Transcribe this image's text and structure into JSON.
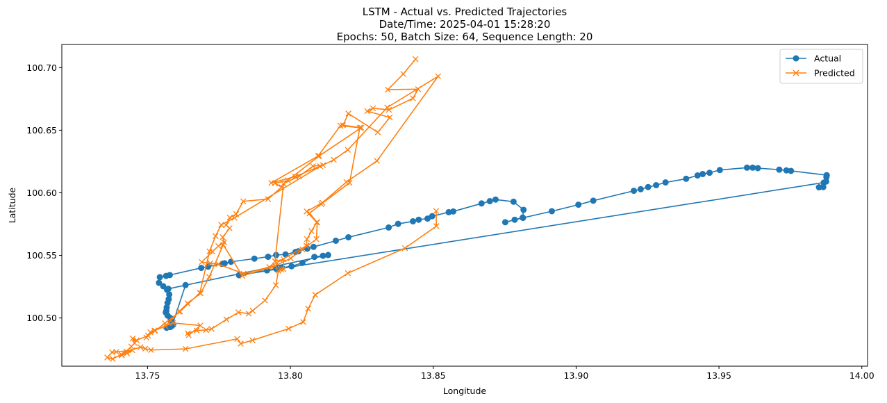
{
  "chart_data": {
    "type": "line",
    "title_lines": [
      "LSTM - Actual vs. Predicted Trajectories",
      "Date/Time: 2025-04-01 15:28:20",
      "Epochs: 50, Batch Size: 64, Sequence Length: 20"
    ],
    "xlabel": "Longitude",
    "ylabel": "Latitude",
    "xlim": [
      13.72,
      14.002
    ],
    "ylim": [
      100.4615,
      100.7185
    ],
    "xticks": [
      "13.75",
      "13.80",
      "13.85",
      "13.90",
      "13.95",
      "14.00"
    ],
    "yticks": [
      "100.50",
      "100.55",
      "100.60",
      "100.65",
      "100.70"
    ],
    "legend_position": "top-right",
    "colors": {
      "actual": "#1f77b4",
      "predicted": "#ff7f0e"
    },
    "series": [
      {
        "name": "Actual",
        "marker": "circle",
        "points": [
          [
            13.7543,
            100.5326
          ],
          [
            13.7565,
            100.5336
          ],
          [
            13.7578,
            100.5343
          ],
          [
            13.7688,
            100.54
          ],
          [
            13.7712,
            100.541
          ],
          [
            13.7762,
            100.5433
          ],
          [
            13.777,
            100.5437
          ],
          [
            13.7792,
            100.5449
          ],
          [
            13.7874,
            100.5474
          ],
          [
            13.7922,
            100.5489
          ],
          [
            13.795,
            100.5503
          ],
          [
            13.7983,
            100.5508
          ],
          [
            13.8018,
            100.5527
          ],
          [
            13.8028,
            100.5533
          ],
          [
            13.8059,
            100.5554
          ],
          [
            13.8081,
            100.5568
          ],
          [
            13.8159,
            100.5617
          ],
          [
            13.8203,
            100.5645
          ],
          [
            13.8344,
            100.5723
          ],
          [
            13.8377,
            100.5752
          ],
          [
            13.8429,
            100.5772
          ],
          [
            13.8449,
            100.5785
          ],
          [
            13.848,
            100.5794
          ],
          [
            13.8496,
            100.5813
          ],
          [
            13.8554,
            100.5845
          ],
          [
            13.857,
            100.5851
          ],
          [
            13.8669,
            100.5915
          ],
          [
            13.8698,
            100.5933
          ],
          [
            13.8718,
            100.5946
          ],
          [
            13.8781,
            100.5929
          ],
          [
            13.8816,
            100.5864
          ],
          [
            13.8813,
            100.5802
          ],
          [
            13.8785,
            100.5785
          ],
          [
            13.8752,
            100.5765
          ],
          [
            13.8814,
            100.58
          ],
          [
            13.8915,
            100.5853
          ],
          [
            13.9008,
            100.5905
          ],
          [
            13.906,
            100.5937
          ],
          [
            13.9202,
            100.6016
          ],
          [
            13.9226,
            100.6029
          ],
          [
            13.9252,
            100.6046
          ],
          [
            13.928,
            100.6061
          ],
          [
            13.9313,
            100.6083
          ],
          [
            13.9385,
            100.6112
          ],
          [
            13.9425,
            100.6139
          ],
          [
            13.9443,
            100.615
          ],
          [
            13.9467,
            100.616
          ],
          [
            13.9503,
            100.6182
          ],
          [
            13.9598,
            100.6201
          ],
          [
            13.9618,
            100.6201
          ],
          [
            13.9636,
            100.6197
          ],
          [
            13.9711,
            100.6185
          ],
          [
            13.9736,
            100.6179
          ],
          [
            13.9752,
            100.6175
          ],
          [
            13.9877,
            100.6141
          ],
          [
            13.9876,
            100.6125
          ],
          [
            13.9875,
            100.609
          ],
          [
            13.9865,
            100.6046
          ],
          [
            13.985,
            100.6044
          ],
          [
            13.9867,
            100.6082
          ],
          [
            13.782,
            100.5342
          ],
          [
            13.7918,
            100.538
          ],
          [
            13.795,
            100.5393
          ],
          [
            13.797,
            100.5403
          ],
          [
            13.8004,
            100.5413
          ],
          [
            13.8042,
            100.544
          ],
          [
            13.8084,
            100.5488
          ],
          [
            13.8114,
            100.5497
          ],
          [
            13.8132,
            100.5503
          ],
          [
            13.7573,
            100.5233
          ],
          [
            13.754,
            100.5281
          ],
          [
            13.7555,
            100.5254
          ],
          [
            13.7568,
            100.5226
          ],
          [
            13.7576,
            100.5188
          ],
          [
            13.7574,
            100.515
          ],
          [
            13.757,
            100.512
          ],
          [
            13.7567,
            100.5084
          ],
          [
            13.7566,
            100.5058
          ],
          [
            13.7564,
            100.5044
          ],
          [
            13.757,
            100.502
          ],
          [
            13.758,
            100.5
          ],
          [
            13.7583,
            100.4975
          ],
          [
            13.759,
            100.4948
          ],
          [
            13.7567,
            100.4922
          ],
          [
            13.758,
            100.4928
          ],
          [
            13.7586,
            100.4938
          ],
          [
            13.7633,
            100.5263
          ]
        ]
      },
      {
        "name": "Predicted",
        "marker": "x",
        "points": [
          [
            13.8438,
            100.7068
          ],
          [
            13.8395,
            100.6949
          ],
          [
            13.8341,
            100.6824
          ],
          [
            13.8447,
            100.6828
          ],
          [
            13.8429,
            100.6755
          ],
          [
            13.8345,
            100.6663
          ],
          [
            13.8289,
            100.6675
          ],
          [
            13.8269,
            100.6652
          ],
          [
            13.8348,
            100.6602
          ],
          [
            13.8306,
            100.6483
          ],
          [
            13.8203,
            100.6633
          ],
          [
            13.8184,
            100.654
          ],
          [
            13.8248,
            100.652
          ],
          [
            13.8101,
            100.6295
          ],
          [
            13.7991,
            100.6099
          ],
          [
            13.7946,
            100.6076
          ],
          [
            13.7969,
            100.6045
          ],
          [
            13.7922,
            100.595
          ],
          [
            13.7835,
            100.5932
          ],
          [
            13.781,
            100.5831
          ],
          [
            13.7788,
            100.5802
          ],
          [
            13.7775,
            100.5742
          ],
          [
            13.7787,
            100.5717
          ],
          [
            13.7763,
            100.5645
          ],
          [
            13.7768,
            100.5604
          ],
          [
            13.7748,
            100.5575
          ],
          [
            13.7727,
            100.553
          ],
          [
            13.769,
            100.5447
          ],
          [
            13.772,
            100.5437
          ],
          [
            13.7748,
            100.543
          ],
          [
            13.7836,
            100.5354
          ],
          [
            13.7926,
            100.5407
          ],
          [
            13.8056,
            100.5577
          ],
          [
            13.8058,
            100.563
          ],
          [
            13.8074,
            100.5694
          ],
          [
            13.8092,
            100.5764
          ],
          [
            13.8057,
            100.5851
          ],
          [
            13.8112,
            100.5921
          ],
          [
            13.8196,
            100.6086
          ],
          [
            13.8303,
            100.6255
          ],
          [
            13.8517,
            100.6931
          ],
          [
            13.8339,
            100.6682
          ],
          [
            13.8201,
            100.6343
          ],
          [
            13.8152,
            100.6264
          ],
          [
            13.8114,
            100.6221
          ],
          [
            13.8079,
            100.6213
          ],
          [
            13.8031,
            100.6133
          ],
          [
            13.7976,
            100.6073
          ],
          [
            13.7946,
            100.5453
          ],
          [
            13.7976,
            100.5469
          ],
          [
            13.7976,
            100.5391
          ],
          [
            13.7968,
            100.5387
          ],
          [
            13.7958,
            100.5377
          ],
          [
            13.7949,
            100.5262
          ],
          [
            13.7911,
            100.514
          ],
          [
            13.7868,
            100.5058
          ],
          [
            13.7854,
            100.5035
          ],
          [
            13.7818,
            100.5045
          ],
          [
            13.7776,
            100.4988
          ],
          [
            13.7724,
            100.4913
          ],
          [
            13.7705,
            100.4904
          ],
          [
            13.7672,
            100.49
          ],
          [
            13.7641,
            100.4878
          ],
          [
            13.7644,
            100.4862
          ],
          [
            13.7685,
            100.494
          ],
          [
            13.7589,
            100.496
          ],
          [
            13.7524,
            100.49
          ],
          [
            13.7496,
            100.4844
          ],
          [
            13.751,
            100.4887
          ],
          [
            13.7563,
            100.4935
          ],
          [
            13.761,
            100.505
          ],
          [
            13.764,
            100.5117
          ],
          [
            13.7686,
            100.5197
          ],
          [
            13.7716,
            100.5328
          ],
          [
            13.7765,
            100.5585
          ],
          [
            13.7832,
            100.5336
          ],
          [
            13.7946,
            100.5416
          ],
          [
            13.8001,
            100.5477
          ],
          [
            13.8042,
            100.5547
          ],
          [
            13.8091,
            100.563
          ],
          [
            13.8094,
            100.5764
          ],
          [
            13.8067,
            100.5836
          ],
          [
            13.8108,
            100.591
          ],
          [
            13.8207,
            100.608
          ],
          [
            13.8243,
            100.652
          ],
          [
            13.8175,
            100.6536
          ],
          [
            13.8097,
            100.6294
          ],
          [
            13.7933,
            100.6079
          ],
          [
            13.8017,
            100.613
          ],
          [
            13.8104,
            100.6212
          ],
          [
            13.7804,
            100.58
          ],
          [
            13.7758,
            100.5744
          ],
          [
            13.7738,
            100.5654
          ],
          [
            13.7717,
            100.5532
          ],
          [
            13.7683,
            100.5201
          ],
          [
            13.7614,
            100.5052
          ],
          [
            13.7561,
            100.4958
          ],
          [
            13.7527,
            100.4898
          ],
          [
            13.7502,
            100.4859
          ],
          [
            13.7462,
            100.4822
          ],
          [
            13.7448,
            100.4836
          ],
          [
            13.7455,
            100.4799
          ],
          [
            13.7443,
            100.4772
          ],
          [
            13.741,
            100.4702
          ],
          [
            13.7428,
            100.4718
          ],
          [
            13.7447,
            100.4742
          ],
          [
            13.7391,
            100.4729
          ],
          [
            13.7376,
            100.4727
          ],
          [
            13.7359,
            100.4684
          ],
          [
            13.7378,
            100.4673
          ],
          [
            13.7408,
            100.4709
          ],
          [
            13.7426,
            100.4732
          ],
          [
            13.7475,
            100.4767
          ],
          [
            13.7492,
            100.4755
          ],
          [
            13.7512,
            100.4744
          ],
          [
            13.7633,
            100.4753
          ],
          [
            13.7814,
            100.4833
          ],
          [
            13.7826,
            100.4795
          ],
          [
            13.7867,
            100.4822
          ],
          [
            13.7994,
            100.4915
          ],
          [
            13.8045,
            100.4968
          ],
          [
            13.8062,
            100.5074
          ],
          [
            13.8087,
            100.5185
          ],
          [
            13.8201,
            100.5358
          ],
          [
            13.8401,
            100.5558
          ],
          [
            13.8511,
            100.5734
          ],
          [
            13.851,
            100.5855
          ]
        ]
      }
    ]
  }
}
